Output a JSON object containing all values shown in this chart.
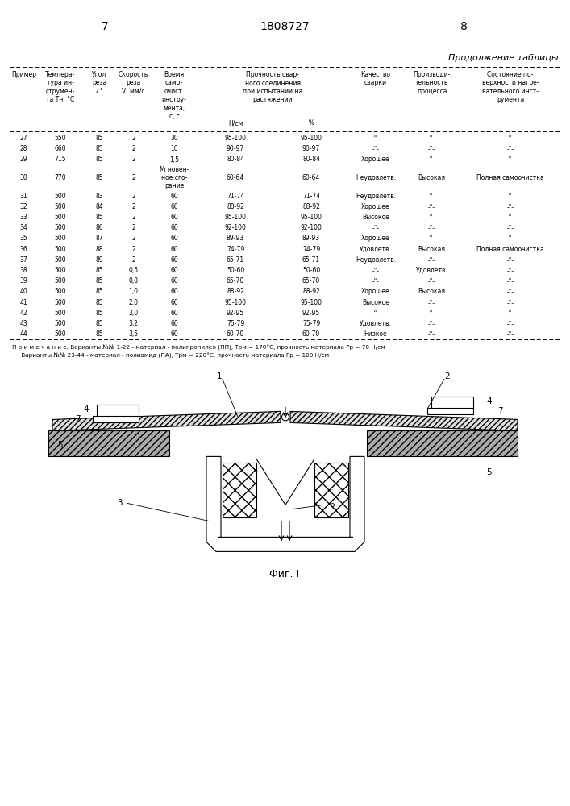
{
  "page_num_left": "7",
  "page_num_center": "1808727",
  "page_num_right": "8",
  "table_title": "Продолжение таблицы",
  "footnote_line1": "П р и м е ч а н и е. Варианты №№ 1-22 - материал - полипропилен (ПП), Трм = 170°С, прочность материала Рр = 70 Н/см",
  "footnote_line2": "     Варианты №№ 23-44 - материал - полиамид (ПА), Трм = 220°С, прочность материала Рр = 100 Н/см",
  "fig_caption": "Фиг. I",
  "rows": [
    [
      "27",
      "550",
      "85",
      "2",
      "30",
      "95-100",
      "95-100",
      "-\"-",
      "-\"-",
      "-\"-"
    ],
    [
      "28",
      "660",
      "85",
      "2",
      "10",
      "90-97",
      "90-97",
      "-\"-",
      "-\"-",
      "-\"-"
    ],
    [
      "29",
      "715",
      "85",
      "2",
      "1,5",
      "80-84",
      "80-84",
      "Хорошее",
      "-\"-",
      "-\"-"
    ],
    [
      "30",
      "770",
      "85",
      "2",
      "Мгновен-\nное сго-\nрание",
      "60-64",
      "60-64",
      "Неудовлетв.",
      "Высокая",
      "Полная самоочистка"
    ],
    [
      "31",
      "500",
      "83",
      "2",
      "60",
      "71-74",
      "71-74",
      "Неудовлетв.",
      "-\"-",
      "-\"-"
    ],
    [
      "32",
      "500",
      "84",
      "2",
      "60",
      "88-92",
      "88-92",
      "Хорошее",
      "-\"-",
      "-\"-"
    ],
    [
      "33",
      "500",
      "85",
      "2",
      "60",
      "95-100",
      "95-100",
      "Высокое",
      "-\"-",
      "-\"-"
    ],
    [
      "34",
      "500",
      "86",
      "2",
      "60",
      "92-100",
      "92-100",
      "-\"-",
      "-\"-",
      "-\"-"
    ],
    [
      "35",
      "500",
      "87",
      "2",
      "60",
      "89-93",
      "89-93",
      "Хорошее",
      "-\"-",
      "-\"-"
    ],
    [
      "36",
      "500",
      "88",
      "2",
      "60",
      "74-79",
      "74-79",
      "Удовлетв.",
      "Высокая",
      "Полная самоочистка"
    ],
    [
      "37",
      "500",
      "89",
      "2",
      "60",
      "65-71",
      "65-71",
      "Неудовлетв.",
      "-\"-",
      "-\"-"
    ],
    [
      "38",
      "500",
      "85",
      "0,5",
      "60",
      "50-60",
      "50-60",
      "-\"-",
      "Удовлетв.",
      "-\"-"
    ],
    [
      "39",
      "500",
      "85",
      "0,8",
      "60",
      "65-70",
      "65-70",
      "-\"-",
      "-\"-",
      "-\"-"
    ],
    [
      "40",
      "500",
      "85",
      "1,0",
      "60",
      "88-92",
      "88-92",
      "Хорошее",
      "Высокая",
      "-\"-"
    ],
    [
      "41",
      "500",
      "85",
      "2,0",
      "60",
      "95-100",
      "95-100",
      "Высокое",
      "-\"-",
      "-\"-"
    ],
    [
      "42",
      "500",
      "85",
      "3,0",
      "60",
      "92-95",
      "92-95",
      "-\"-",
      "-\"-",
      "-\"-"
    ],
    [
      "43",
      "500",
      "85",
      "3,2",
      "60",
      "75-79",
      "75-79",
      "Удовлетв.",
      "-\"-",
      "-\"-"
    ],
    [
      "44",
      "500",
      "85",
      "3,5",
      "60",
      "60-70",
      "60-70",
      "Низкое",
      "-\"-",
      "-\"-"
    ]
  ]
}
